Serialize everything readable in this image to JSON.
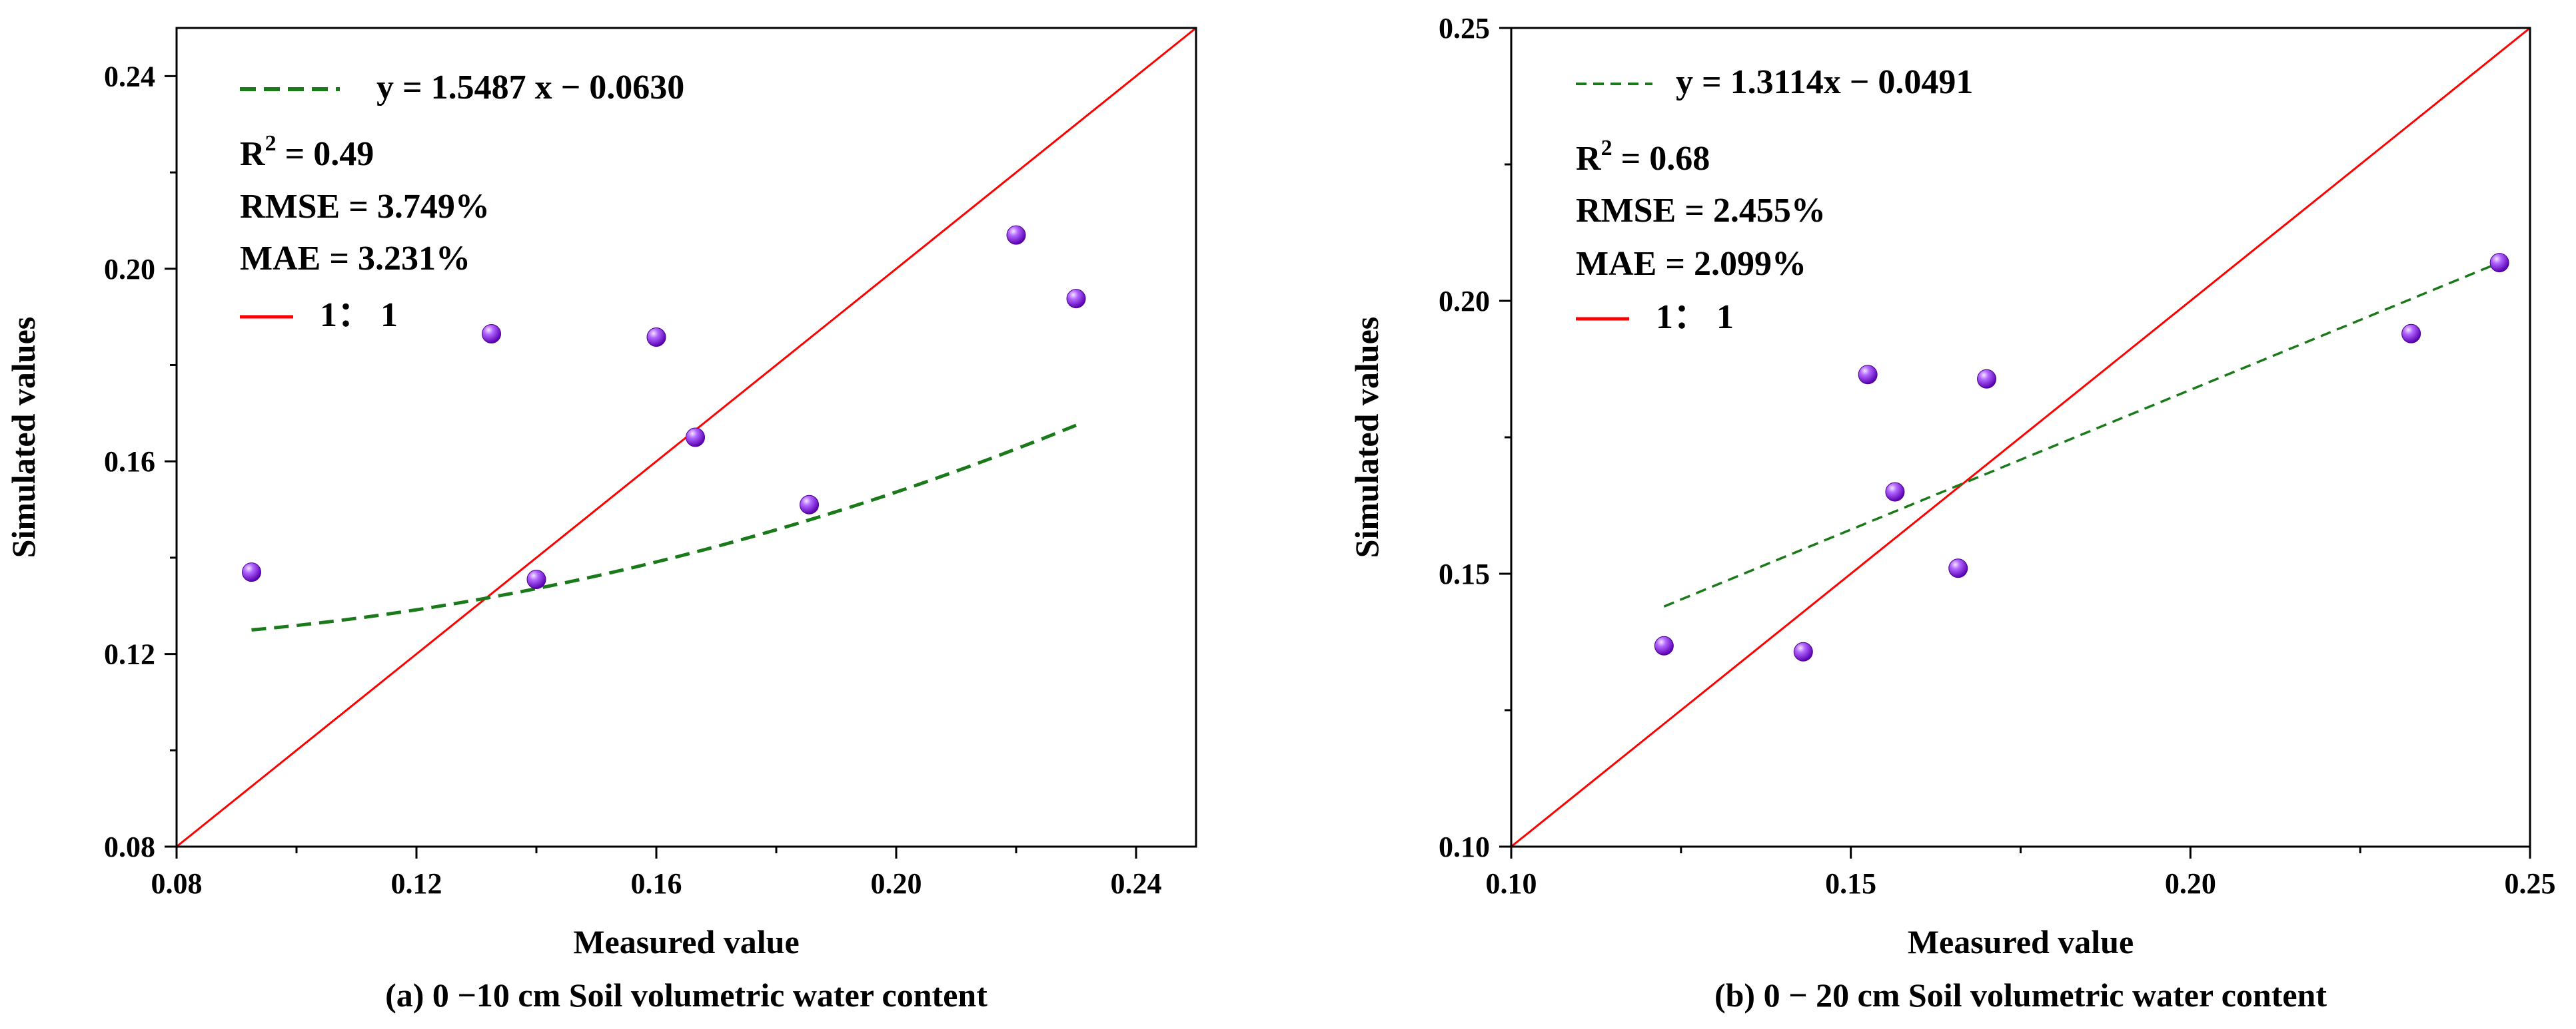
{
  "chart_data": [
    {
      "type": "scatter",
      "xlabel": "Measured value",
      "ylabel": "Simulated values",
      "caption": "(a) 0 −10 cm Soil volumetric water content",
      "xlim": [
        0.08,
        0.25
      ],
      "ylim": [
        0.08,
        0.25
      ],
      "xticks": [
        0.08,
        0.12,
        0.16,
        0.2,
        0.24
      ],
      "yticks": [
        0.08,
        0.12,
        0.16,
        0.2,
        0.24
      ],
      "xtick_labels": [
        "0.08",
        "0.12",
        "0.16",
        "0.20",
        "0.24"
      ],
      "ytick_labels": [
        "0.08",
        "0.12",
        "0.16",
        "0.20",
        "0.24"
      ],
      "points": [
        {
          "x": 0.0925,
          "y": 0.137
        },
        {
          "x": 0.1325,
          "y": 0.1865
        },
        {
          "x": 0.14,
          "y": 0.1355
        },
        {
          "x": 0.16,
          "y": 0.1858
        },
        {
          "x": 0.1665,
          "y": 0.165
        },
        {
          "x": 0.1855,
          "y": 0.151
        },
        {
          "x": 0.22,
          "y": 0.207
        },
        {
          "x": 0.23,
          "y": 0.1938
        }
      ],
      "fit": {
        "slope": 1.5487,
        "intercept": -0.063,
        "x_range": [
          0.0925,
          0.23
        ],
        "curve_y": [
          0.125,
          0.1395,
          0.1675
        ]
      },
      "legend_fit_label": "y = 1.5487 x − 0.0630",
      "r2_label": "R",
      "r2_value": " = 0.49",
      "rmse_label": "RMSE = 3.749%",
      "mae_label": "MAE = 3.231%",
      "legend_line_label": "1： 1",
      "marker_color": "#8a2be2",
      "fit_color": "#1a7a1a",
      "line_color": "#ff0000"
    },
    {
      "type": "scatter",
      "xlabel": "Measured value",
      "ylabel": "Simulated values",
      "caption": "(b) 0 − 20 cm Soil volumetric water content",
      "xlim": [
        0.1,
        0.25
      ],
      "ylim": [
        0.1,
        0.25
      ],
      "xticks": [
        0.1,
        0.15,
        0.2,
        0.25
      ],
      "yticks": [
        0.1,
        0.15,
        0.2,
        0.25
      ],
      "xtick_labels": [
        "0.10",
        "0.15",
        "0.20",
        "0.25"
      ],
      "ytick_labels": [
        "0.10",
        "0.15",
        "0.20",
        "0.25"
      ],
      "points": [
        {
          "x": 0.1225,
          "y": 0.1368
        },
        {
          "x": 0.143,
          "y": 0.1357
        },
        {
          "x": 0.1525,
          "y": 0.1865
        },
        {
          "x": 0.1565,
          "y": 0.165
        },
        {
          "x": 0.1658,
          "y": 0.151
        },
        {
          "x": 0.17,
          "y": 0.1857
        },
        {
          "x": 0.2325,
          "y": 0.194
        },
        {
          "x": 0.2455,
          "y": 0.207
        }
      ],
      "fit": {
        "slope": 1.3114,
        "intercept": -0.0491,
        "x_range": [
          0.1225,
          0.2455
        ],
        "curve_y": [
          0.144,
          0.207
        ]
      },
      "legend_fit_label": "y = 1.3114x − 0.0491",
      "r2_label": "R",
      "r2_value": " = 0.68",
      "rmse_label": "RMSE = 2.455%",
      "mae_label": "MAE = 2.099%",
      "legend_line_label": "1： 1",
      "marker_color": "#8a2be2",
      "fit_color": "#1a7a1a",
      "line_color": "#ff0000"
    }
  ]
}
